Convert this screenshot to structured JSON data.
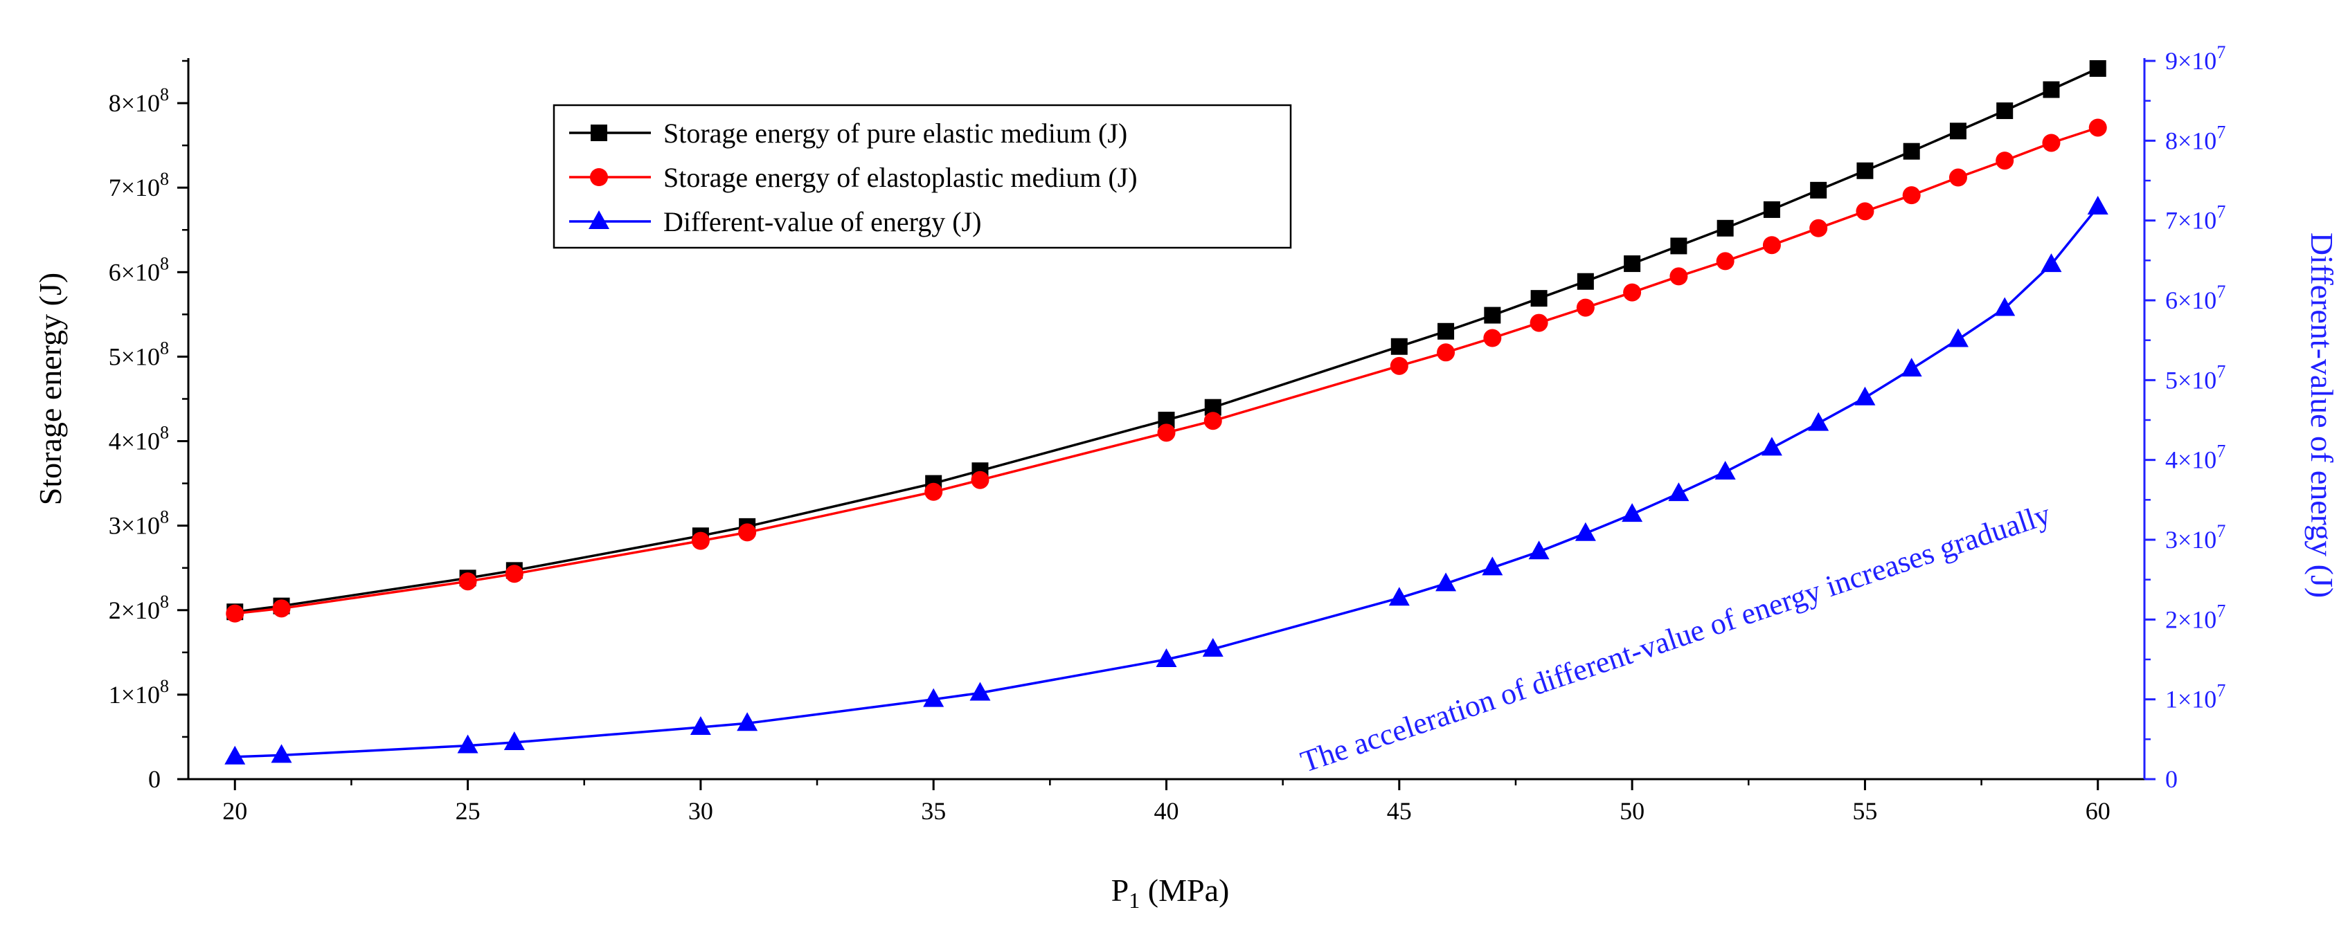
{
  "chart_data": {
    "type": "line",
    "title": "",
    "xlabel": "P",
    "xlabel_sub": "1",
    "xlabel_unit": " (MPa)",
    "ylabel": "Storage energy (J)",
    "y2label": "Different-value of energy (J)",
    "xlim": [
      19,
      61
    ],
    "ylim": [
      0,
      850000000
    ],
    "y2lim": [
      0,
      90000000
    ],
    "xticks": [
      20,
      25,
      30,
      35,
      40,
      45,
      50,
      55,
      60
    ],
    "xtick_labels": [
      "20",
      "25",
      "30",
      "35",
      "40",
      "45",
      "50",
      "55",
      "60"
    ],
    "yticks": [
      {
        "value": 0,
        "mant": "0",
        "exp": ""
      },
      {
        "value": 100000000,
        "mant": "1×10",
        "exp": "8"
      },
      {
        "value": 200000000,
        "mant": "2×10",
        "exp": "8"
      },
      {
        "value": 300000000,
        "mant": "3×10",
        "exp": "8"
      },
      {
        "value": 400000000,
        "mant": "4×10",
        "exp": "8"
      },
      {
        "value": 500000000,
        "mant": "5×10",
        "exp": "8"
      },
      {
        "value": 600000000,
        "mant": "6×10",
        "exp": "8"
      },
      {
        "value": 700000000,
        "mant": "7×10",
        "exp": "8"
      },
      {
        "value": 800000000,
        "mant": "8×10",
        "exp": "8"
      }
    ],
    "y2ticks": [
      {
        "value": 0,
        "mant": "0",
        "exp": ""
      },
      {
        "value": 10000000,
        "mant": "1×10",
        "exp": "7"
      },
      {
        "value": 20000000,
        "mant": "2×10",
        "exp": "7"
      },
      {
        "value": 30000000,
        "mant": "3×10",
        "exp": "7"
      },
      {
        "value": 40000000,
        "mant": "4×10",
        "exp": "7"
      },
      {
        "value": 50000000,
        "mant": "5×10",
        "exp": "7"
      },
      {
        "value": 60000000,
        "mant": "6×10",
        "exp": "7"
      },
      {
        "value": 70000000,
        "mant": "7×10",
        "exp": "7"
      },
      {
        "value": 80000000,
        "mant": "8×10",
        "exp": "7"
      },
      {
        "value": 90000000,
        "mant": "9×10",
        "exp": "7"
      }
    ],
    "x": [
      20,
      21,
      25,
      26,
      30,
      31,
      35,
      36,
      40,
      41,
      45,
      46,
      47,
      48,
      49,
      50,
      51,
      52,
      53,
      54,
      55,
      56,
      57,
      58,
      59,
      60
    ],
    "series": [
      {
        "name": "Storage energy of pure elastic medium (J)",
        "axis": "left",
        "color": "#000000",
        "marker": "square",
        "values": [
          198000000,
          205000000,
          238000000,
          247000000,
          288000000,
          299000000,
          350000000,
          365000000,
          425000000,
          440000000,
          512000000,
          530000000,
          549000000,
          569000000,
          589000000,
          610000000,
          631000000,
          652000000,
          674000000,
          697000000,
          720000000,
          743000000,
          767000000,
          791000000,
          816000000,
          841000000
        ]
      },
      {
        "name": "Storage energy of elastoplastic medium (J)",
        "axis": "left",
        "color": "#ff0000",
        "marker": "circle",
        "values": [
          196000000,
          202000000,
          234000000,
          243000000,
          282000000,
          292000000,
          340000000,
          354000000,
          410000000,
          424000000,
          489000000,
          505000000,
          522000000,
          540000000,
          558000000,
          576000000,
          595000000,
          613000000,
          632000000,
          652000000,
          672000000,
          691000000,
          712000000,
          732000000,
          753000000,
          771000000
        ]
      },
      {
        "name": "Different-value of energy (J)",
        "axis": "right",
        "color": "#0000ff",
        "marker": "triangle",
        "values": [
          2800000,
          3000000,
          4200000,
          4600000,
          6500000,
          7000000,
          10000000,
          10800000,
          15000000,
          16300000,
          22700000,
          24500000,
          26500000,
          28500000,
          30800000,
          33200000,
          35800000,
          38500000,
          41500000,
          44600000,
          47800000,
          51400000,
          55100000,
          59000000,
          64500000,
          71700000
        ]
      }
    ],
    "legend_position": "top-left",
    "annotation": "The acceleration of different-value of energy increases gradually",
    "annotation_x": 51,
    "annotation_y2": 16500000,
    "annotation_rotation": -18.5,
    "grid": false,
    "colors": {
      "left_axis": "#000000",
      "right_axis": "#2020ff"
    }
  }
}
